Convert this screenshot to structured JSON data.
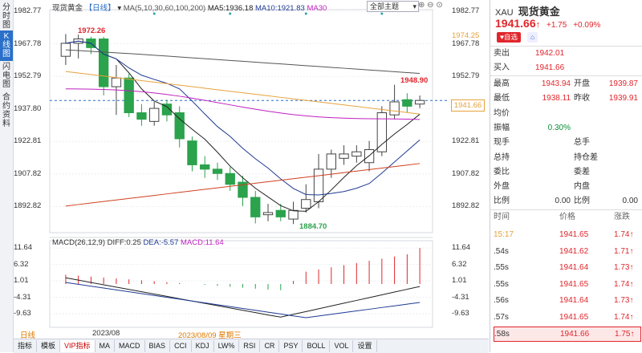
{
  "side_tabs": [
    {
      "label": "分时图"
    },
    {
      "label": "K线图"
    },
    {
      "label": "闪电图"
    },
    {
      "label": "合约资料"
    }
  ],
  "legend": {
    "name": "现货黄金",
    "period": "【日线】",
    "ma_label": "MA(5,10,30,60,100,200)",
    "ma5": "MA5:1936.18",
    "ma10": "MA10:1921.83",
    "ma30": "MA30",
    "menu_label": "全部主题"
  },
  "price_axis_left": [
    "1982.77",
    "1967.78",
    "1952.79",
    "1937.80",
    "1922.81",
    "1907.82",
    "1892.82"
  ],
  "price_axis_right": [
    "1982.77",
    "1967.78",
    "1952.79",
    "1937.80",
    "1922.81",
    "1907.82",
    "1892.82"
  ],
  "ma_right_label": "1974.25",
  "current_price_tag": "1941.66",
  "annotations": {
    "high": "1972.26",
    "recent_high": "1948.90",
    "low": "1884.70"
  },
  "macd": {
    "legend": "MACD(26,12,9)",
    "diff": "DIFF:0.25",
    "dea": "DEA:-5.57",
    "macd": "MACD:11.64",
    "axis_left": [
      "11.64",
      "6.32",
      "1.01",
      "-4.31",
      "-9.63"
    ],
    "axis_right": [
      "11.64",
      "6.32",
      "1.01",
      "-4.31",
      "-9.63"
    ]
  },
  "time_axis": {
    "period": "日线",
    "month": "2023/08",
    "cursor": "2023/08/09 星期三"
  },
  "bottom_tabs": [
    "指标",
    "模板",
    "VIP指标",
    "MA",
    "MACD",
    "BIAS",
    "CCI",
    "KDJ",
    "LW%",
    "RSI",
    "CR",
    "PSY",
    "BOLL",
    "VOL",
    "设置"
  ],
  "candles": [
    {
      "o": 1962,
      "c": 1968,
      "h": 1972.26,
      "l": 1958
    },
    {
      "o": 1968,
      "c": 1970,
      "h": 1972,
      "l": 1961
    },
    {
      "o": 1970,
      "c": 1966,
      "h": 1971,
      "l": 1963
    },
    {
      "o": 1970,
      "c": 1948,
      "h": 1971,
      "l": 1944
    },
    {
      "o": 1948,
      "c": 1952,
      "h": 1958,
      "l": 1935
    },
    {
      "o": 1952,
      "c": 1936,
      "h": 1954,
      "l": 1934
    },
    {
      "o": 1936,
      "c": 1933,
      "h": 1940,
      "l": 1930
    },
    {
      "o": 1932,
      "c": 1938,
      "h": 1941,
      "l": 1930
    },
    {
      "o": 1940,
      "c": 1935,
      "h": 1942,
      "l": 1932
    },
    {
      "o": 1936,
      "c": 1924,
      "h": 1939,
      "l": 1920
    },
    {
      "o": 1923,
      "c": 1912,
      "h": 1925,
      "l": 1909
    },
    {
      "o": 1912,
      "c": 1910,
      "h": 1916,
      "l": 1906
    },
    {
      "o": 1910,
      "c": 1908,
      "h": 1913,
      "l": 1905
    },
    {
      "o": 1908,
      "c": 1903,
      "h": 1911,
      "l": 1900
    },
    {
      "o": 1904,
      "c": 1897,
      "h": 1907,
      "l": 1893
    },
    {
      "o": 1897,
      "c": 1888,
      "h": 1900,
      "l": 1885
    },
    {
      "o": 1889,
      "c": 1890,
      "h": 1894,
      "l": 1886
    },
    {
      "o": 1891,
      "c": 1888,
      "h": 1894,
      "l": 1886
    },
    {
      "o": 1887,
      "c": 1891,
      "h": 1895,
      "l": 1884.7
    },
    {
      "o": 1892,
      "c": 1896,
      "h": 1903,
      "l": 1890
    },
    {
      "o": 1895,
      "c": 1910,
      "h": 1917,
      "l": 1892
    },
    {
      "o": 1910,
      "c": 1917,
      "h": 1919,
      "l": 1906
    },
    {
      "o": 1915,
      "c": 1917,
      "h": 1921,
      "l": 1912
    },
    {
      "o": 1916,
      "c": 1918,
      "h": 1921,
      "l": 1913
    },
    {
      "o": 1913,
      "c": 1919,
      "h": 1923,
      "l": 1909
    },
    {
      "o": 1918,
      "c": 1936,
      "h": 1939,
      "l": 1916
    },
    {
      "o": 1935,
      "c": 1941,
      "h": 1948.9,
      "l": 1933
    },
    {
      "o": 1942,
      "c": 1939,
      "h": 1945,
      "l": 1936
    },
    {
      "o": 1940,
      "c": 1941.66,
      "h": 1943.94,
      "l": 1938.11
    }
  ],
  "panel": {
    "code": "XAU",
    "name": "现货黄金",
    "price": "1941.66",
    "arrow": "↑",
    "change": "+1.75",
    "pct": "+0.09%",
    "btn_watch": "自选",
    "btn_bell": "🔔",
    "sell_label": "卖出",
    "sell_value": "1942.01",
    "buy_label": "买入",
    "buy_value": "1941.66",
    "stats": [
      {
        "l1": "最高",
        "v1": "1943.94",
        "l2": "开盘",
        "v2": "1939.87"
      },
      {
        "l1": "最低",
        "v1": "1938.11",
        "l2": "昨收",
        "v2": "1939.91"
      },
      {
        "l1": "均价",
        "v1": "",
        "l2": "",
        "v2": ""
      },
      {
        "l1": "振幅",
        "v1": "0.30%",
        "l2": "",
        "v2": ""
      },
      {
        "l1": "现手",
        "v1": "",
        "l2": "总手",
        "v2": ""
      },
      {
        "l1": "总持",
        "v1": "",
        "l2": "持仓差",
        "v2": ""
      },
      {
        "l1": "委比",
        "v1": "",
        "l2": "委差",
        "v2": ""
      },
      {
        "l1": "外盘",
        "v1": "",
        "l2": "内盘",
        "v2": ""
      },
      {
        "l1": "比例",
        "v1": "0.00",
        "l2": "比例",
        "v2": "0.00"
      }
    ],
    "ticks_header": {
      "time": "时间",
      "price": "价格",
      "change": "涨跌"
    },
    "ticks": [
      {
        "time": "15:17",
        "price": "1941.65",
        "change": "1.74↑"
      },
      {
        "time": ".54s",
        "price": "1941.62",
        "change": "1.71↑"
      },
      {
        "time": ".55s",
        "price": "1941.64",
        "change": "1.73↑"
      },
      {
        "time": ".55s",
        "price": "1941.65",
        "change": "1.74↑"
      },
      {
        "time": ".56s",
        "price": "1941.64",
        "change": "1.73↑"
      },
      {
        "time": ".57s",
        "price": "1941.65",
        "change": "1.74↑"
      },
      {
        "time": ".58s",
        "price": "1941.66",
        "change": "1.75↑"
      }
    ]
  },
  "colors": {
    "up": "#e0262c",
    "down": "#2ba24c",
    "ma5": "#222222",
    "ma10": "#1f3a93",
    "ma30": "#c020c0",
    "ma_orange": "#e6a23c",
    "ma_red": "#d0401f",
    "accent": "#2a6fc9"
  }
}
